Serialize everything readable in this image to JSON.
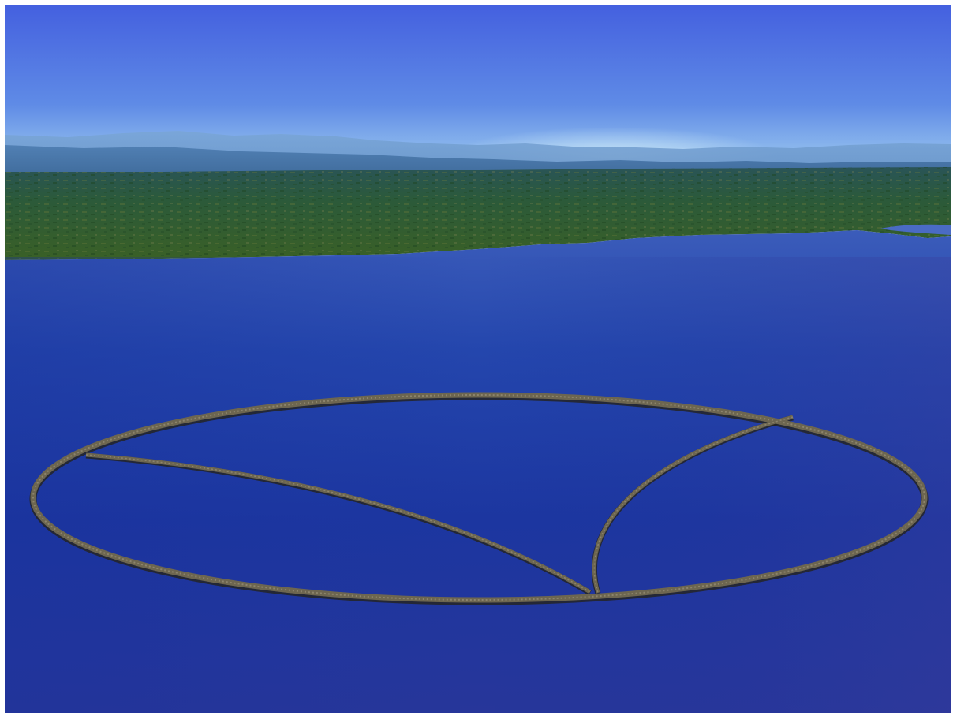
{
  "scene": {
    "subject": "",
    "colors": {
      "sky_top": "#4460df",
      "sky_horizon": "#a9d3ef",
      "mountains_far": "#6f98cd",
      "mountains_near": "#3f6c9e",
      "land_far": "#2c5a58",
      "land_near": "#2f5b28",
      "water_near_shore": "#3a5bb8",
      "water_mid": "#1a34a0",
      "water_bottom": "#263597",
      "wall_stone": "#6d6650",
      "wall_shadow": "#2a2a28"
    }
  }
}
